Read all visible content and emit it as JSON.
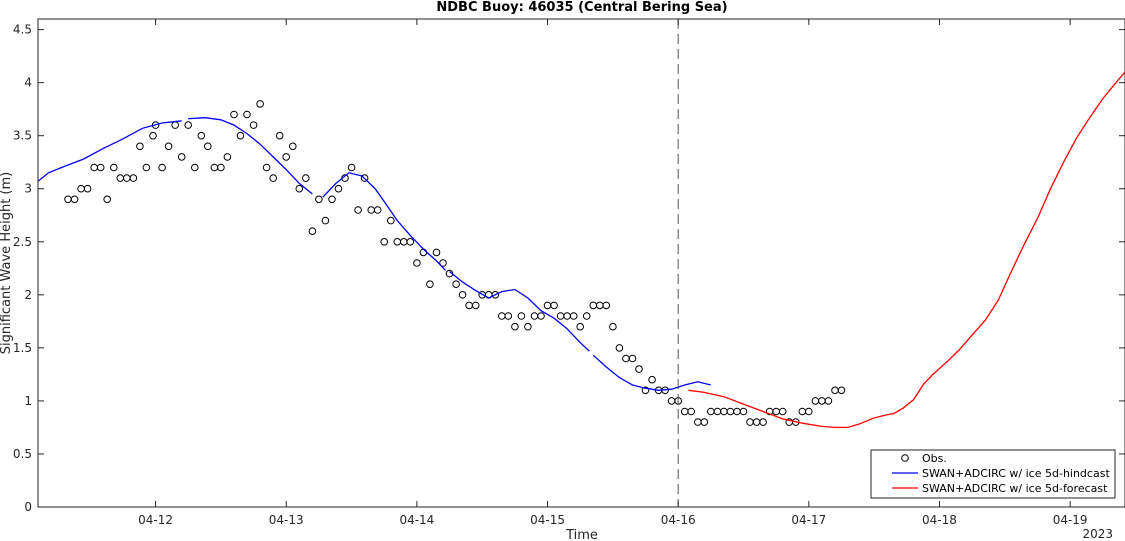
{
  "chart_data": {
    "type": "line",
    "title": "NDBC Buoy: 46035 (Central Bering Sea)",
    "xlabel": "Time",
    "ylabel": "Significant Wave Height (m)",
    "year_label": "2023",
    "xlim": [
      11.1,
      19.42
    ],
    "ylim": [
      0,
      4.6
    ],
    "x_tick_values": [
      12,
      13,
      14,
      15,
      16,
      17,
      18,
      19
    ],
    "x_tick_labels": [
      "04-12",
      "04-13",
      "04-14",
      "04-15",
      "04-16",
      "04-17",
      "04-18",
      "04-19"
    ],
    "y_ticks": [
      0,
      0.5,
      1,
      1.5,
      2,
      2.5,
      3,
      3.5,
      4,
      4.5
    ],
    "y_tick_labels": [
      "0",
      "0.5",
      "1",
      "1.5",
      "2",
      "2.5",
      "3",
      "3.5",
      "4",
      "4.5"
    ],
    "grid": false,
    "legend_position": "bottom-right",
    "forecast_start": 16.0,
    "series": [
      {
        "name": "Obs.",
        "style": "markers",
        "color": "#000000",
        "points": [
          [
            11.33,
            2.9
          ],
          [
            11.38,
            2.9
          ],
          [
            11.43,
            3.0
          ],
          [
            11.48,
            3.0
          ],
          [
            11.53,
            3.2
          ],
          [
            11.58,
            3.2
          ],
          [
            11.63,
            2.9
          ],
          [
            11.68,
            3.2
          ],
          [
            11.73,
            3.1
          ],
          [
            11.78,
            3.1
          ],
          [
            11.83,
            3.1
          ],
          [
            11.88,
            3.4
          ],
          [
            11.93,
            3.2
          ],
          [
            11.98,
            3.5
          ],
          [
            12.0,
            3.6
          ],
          [
            12.05,
            3.2
          ],
          [
            12.1,
            3.4
          ],
          [
            12.15,
            3.6
          ],
          [
            12.2,
            3.3
          ],
          [
            12.25,
            3.6
          ],
          [
            12.3,
            3.2
          ],
          [
            12.35,
            3.5
          ],
          [
            12.4,
            3.4
          ],
          [
            12.45,
            3.2
          ],
          [
            12.5,
            3.2
          ],
          [
            12.55,
            3.3
          ],
          [
            12.6,
            3.7
          ],
          [
            12.65,
            3.5
          ],
          [
            12.7,
            3.7
          ],
          [
            12.75,
            3.6
          ],
          [
            12.8,
            3.8
          ],
          [
            12.85,
            3.2
          ],
          [
            12.9,
            3.1
          ],
          [
            12.95,
            3.5
          ],
          [
            13.0,
            3.3
          ],
          [
            13.05,
            3.4
          ],
          [
            13.1,
            3.0
          ],
          [
            13.15,
            3.1
          ],
          [
            13.2,
            2.6
          ],
          [
            13.25,
            2.9
          ],
          [
            13.3,
            2.7
          ],
          [
            13.35,
            2.9
          ],
          [
            13.4,
            3.0
          ],
          [
            13.45,
            3.1
          ],
          [
            13.5,
            3.2
          ],
          [
            13.55,
            2.8
          ],
          [
            13.6,
            3.1
          ],
          [
            13.65,
            2.8
          ],
          [
            13.7,
            2.8
          ],
          [
            13.75,
            2.5
          ],
          [
            13.8,
            2.7
          ],
          [
            13.85,
            2.5
          ],
          [
            13.9,
            2.5
          ],
          [
            13.95,
            2.5
          ],
          [
            14.0,
            2.3
          ],
          [
            14.05,
            2.4
          ],
          [
            14.1,
            2.1
          ],
          [
            14.15,
            2.4
          ],
          [
            14.2,
            2.3
          ],
          [
            14.25,
            2.2
          ],
          [
            14.3,
            2.1
          ],
          [
            14.35,
            2.0
          ],
          [
            14.4,
            1.9
          ],
          [
            14.45,
            1.9
          ],
          [
            14.5,
            2.0
          ],
          [
            14.55,
            2.0
          ],
          [
            14.6,
            2.0
          ],
          [
            14.65,
            1.8
          ],
          [
            14.7,
            1.8
          ],
          [
            14.75,
            1.7
          ],
          [
            14.8,
            1.8
          ],
          [
            14.85,
            1.7
          ],
          [
            14.9,
            1.8
          ],
          [
            14.95,
            1.8
          ],
          [
            15.0,
            1.9
          ],
          [
            15.05,
            1.9
          ],
          [
            15.1,
            1.8
          ],
          [
            15.15,
            1.8
          ],
          [
            15.2,
            1.8
          ],
          [
            15.25,
            1.7
          ],
          [
            15.3,
            1.8
          ],
          [
            15.35,
            1.9
          ],
          [
            15.4,
            1.9
          ],
          [
            15.45,
            1.9
          ],
          [
            15.5,
            1.7
          ],
          [
            15.55,
            1.5
          ],
          [
            15.6,
            1.4
          ],
          [
            15.65,
            1.4
          ],
          [
            15.7,
            1.3
          ],
          [
            15.75,
            1.1
          ],
          [
            15.8,
            1.2
          ],
          [
            15.85,
            1.1
          ],
          [
            15.9,
            1.1
          ],
          [
            15.95,
            1.0
          ],
          [
            16.0,
            1.0
          ],
          [
            16.05,
            0.9
          ],
          [
            16.1,
            0.9
          ],
          [
            16.15,
            0.8
          ],
          [
            16.2,
            0.8
          ],
          [
            16.25,
            0.9
          ],
          [
            16.3,
            0.9
          ],
          [
            16.35,
            0.9
          ],
          [
            16.4,
            0.9
          ],
          [
            16.45,
            0.9
          ],
          [
            16.5,
            0.9
          ],
          [
            16.55,
            0.8
          ],
          [
            16.6,
            0.8
          ],
          [
            16.65,
            0.8
          ],
          [
            16.7,
            0.9
          ],
          [
            16.75,
            0.9
          ],
          [
            16.8,
            0.9
          ],
          [
            16.85,
            0.8
          ],
          [
            16.9,
            0.8
          ],
          [
            16.95,
            0.9
          ],
          [
            17.0,
            0.9
          ],
          [
            17.05,
            1.0
          ],
          [
            17.1,
            1.0
          ],
          [
            17.15,
            1.0
          ],
          [
            17.2,
            1.1
          ],
          [
            17.25,
            1.1
          ]
        ]
      },
      {
        "name": "SWAN+ADCIRC w/ ice 5d-hindcast",
        "style": "line",
        "color": "#0000ff",
        "segments": [
          [
            [
              11.1,
              3.07
            ],
            [
              11.18,
              3.15
            ],
            [
              11.3,
              3.21
            ],
            [
              11.45,
              3.28
            ],
            [
              11.6,
              3.38
            ],
            [
              11.75,
              3.47
            ],
            [
              11.9,
              3.57
            ],
            [
              12.05,
              3.62
            ],
            [
              12.2,
              3.64
            ]
          ],
          [
            [
              12.25,
              3.66
            ],
            [
              12.38,
              3.67
            ],
            [
              12.5,
              3.65
            ],
            [
              12.6,
              3.6
            ],
            [
              12.7,
              3.52
            ],
            [
              12.8,
              3.42
            ],
            [
              12.9,
              3.3
            ],
            [
              13.0,
              3.18
            ],
            [
              13.1,
              3.05
            ],
            [
              13.2,
              2.95
            ]
          ],
          [
            [
              13.28,
              2.92
            ],
            [
              13.38,
              3.05
            ],
            [
              13.48,
              3.15
            ],
            [
              13.58,
              3.12
            ],
            [
              13.68,
              3.0
            ],
            [
              13.75,
              2.88
            ],
            [
              13.85,
              2.7
            ],
            [
              13.95,
              2.56
            ],
            [
              14.05,
              2.43
            ],
            [
              14.15,
              2.32
            ],
            [
              14.22,
              2.23
            ]
          ],
          [
            [
              14.25,
              2.22
            ],
            [
              14.35,
              2.12
            ],
            [
              14.45,
              2.04
            ],
            [
              14.55,
              1.97
            ],
            [
              14.65,
              2.03
            ],
            [
              14.75,
              2.05
            ],
            [
              14.85,
              1.97
            ],
            [
              14.95,
              1.85
            ],
            [
              15.05,
              1.78
            ],
            [
              15.15,
              1.68
            ],
            [
              15.25,
              1.55
            ],
            [
              15.32,
              1.47
            ]
          ],
          [
            [
              15.35,
              1.43
            ],
            [
              15.45,
              1.32
            ],
            [
              15.55,
              1.22
            ],
            [
              15.65,
              1.15
            ],
            [
              15.75,
              1.12
            ],
            [
              15.85,
              1.1
            ],
            [
              15.95,
              1.11
            ],
            [
              16.05,
              1.15
            ],
            [
              16.15,
              1.18
            ],
            [
              16.25,
              1.15
            ]
          ]
        ]
      },
      {
        "name": "SWAN+ADCIRC w/ ice 5d-forecast",
        "style": "line",
        "color": "#ff0000",
        "segments": [
          [
            [
              16.08,
              1.1
            ],
            [
              16.2,
              1.08
            ],
            [
              16.35,
              1.04
            ],
            [
              16.5,
              0.97
            ],
            [
              16.65,
              0.9
            ],
            [
              16.8,
              0.83
            ],
            [
              16.95,
              0.79
            ],
            [
              17.1,
              0.76
            ],
            [
              17.2,
              0.75
            ],
            [
              17.3,
              0.75
            ],
            [
              17.38,
              0.78
            ],
            [
              17.5,
              0.84
            ],
            [
              17.6,
              0.87
            ],
            [
              17.65,
              0.88
            ],
            [
              17.72,
              0.93
            ],
            [
              17.8,
              1.01
            ],
            [
              17.88,
              1.16
            ],
            [
              17.95,
              1.25
            ],
            [
              18.05,
              1.36
            ],
            [
              18.15,
              1.48
            ],
            [
              18.25,
              1.62
            ],
            [
              18.35,
              1.76
            ],
            [
              18.45,
              1.95
            ],
            [
              18.55,
              2.22
            ],
            [
              18.65,
              2.48
            ],
            [
              18.75,
              2.72
            ],
            [
              18.85,
              3.0
            ],
            [
              18.95,
              3.25
            ],
            [
              19.05,
              3.48
            ],
            [
              19.15,
              3.67
            ],
            [
              19.25,
              3.85
            ],
            [
              19.35,
              4.0
            ],
            [
              19.42,
              4.1
            ],
            [
              19.5,
              4.22
            ],
            [
              19.6,
              4.35
            ]
          ]
        ]
      }
    ]
  }
}
